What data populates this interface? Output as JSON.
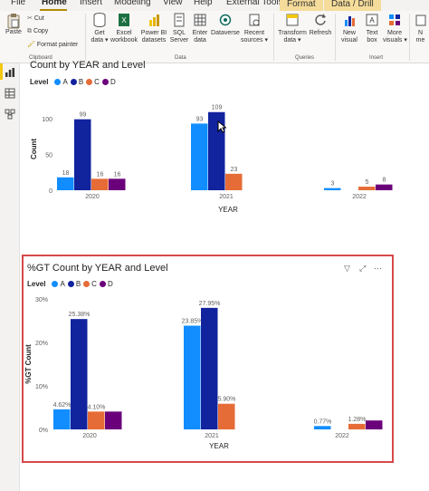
{
  "ribbon": {
    "tabs": [
      "File",
      "Home",
      "Insert",
      "Modeling",
      "View",
      "Help",
      "External Tools",
      "Format",
      "Data / Drill"
    ],
    "clipboard": {
      "paste": "Paste",
      "cut": "Cut",
      "copy": "Copy",
      "format_painter": "Format painter",
      "group": "Clipboard"
    },
    "data": {
      "get_data": [
        "Get",
        "data ▾"
      ],
      "excel": [
        "Excel",
        "workbook"
      ],
      "powerbi": [
        "Power BI",
        "datasets"
      ],
      "sql": [
        "SQL",
        "Server"
      ],
      "enter": [
        "Enter",
        "data"
      ],
      "dataverse": "Dataverse",
      "recent": [
        "Recent",
        "sources ▾"
      ],
      "group": "Data"
    },
    "queries": {
      "transform": [
        "Transform",
        "data ▾"
      ],
      "refresh": "Refresh",
      "group": "Queries"
    },
    "insert": {
      "new_visual": [
        "New",
        "visual"
      ],
      "text_box": [
        "Text",
        "box"
      ],
      "more_visuals": [
        "More",
        "visuals ▾"
      ],
      "group": "Insert"
    },
    "partial_label": "N",
    "partial_label2": "me"
  },
  "colors": {
    "A": "#118dff",
    "B": "#12239e",
    "C": "#e66c37",
    "D": "#6b007b",
    "selection": "#d6494a"
  },
  "charts": [
    {
      "title": "Count by YEAR and Level",
      "legend_title": "Level",
      "legend": [
        "A",
        "B",
        "C",
        "D"
      ],
      "chart_data": {
        "type": "bar",
        "categories": [
          "2020",
          "2021",
          "2022"
        ],
        "series": [
          {
            "name": "A",
            "values": [
              18,
              93,
              3
            ]
          },
          {
            "name": "B",
            "values": [
              99,
              109,
              null
            ]
          },
          {
            "name": "C",
            "values": [
              16,
              23,
              5
            ]
          },
          {
            "name": "D",
            "values": [
              16,
              null,
              8
            ]
          }
        ],
        "labels": [
          [
            "18",
            "93",
            "3"
          ],
          [
            "99",
            "109",
            ""
          ],
          [
            "16",
            "23",
            "5"
          ],
          [
            "16",
            "",
            "8"
          ]
        ],
        "xlabel": "YEAR",
        "ylabel": "Count",
        "yticks": [
          "0",
          "50",
          "100"
        ],
        "ylim": [
          0,
          115
        ]
      }
    },
    {
      "title": "%GT Count by YEAR and Level",
      "legend_title": "Level",
      "legend": [
        "A",
        "B",
        "C",
        "D"
      ],
      "chart_data": {
        "type": "bar",
        "categories": [
          "2020",
          "2021",
          "2022"
        ],
        "series": [
          {
            "name": "A",
            "values": [
              4.62,
              23.85,
              0.77
            ]
          },
          {
            "name": "B",
            "values": [
              25.38,
              27.95,
              null
            ]
          },
          {
            "name": "C",
            "values": [
              4.1,
              5.9,
              1.28
            ]
          },
          {
            "name": "D",
            "values": [
              4.1,
              null,
              2.05
            ]
          }
        ],
        "labels": [
          [
            "4.62%",
            "23.85%",
            "0.77%"
          ],
          [
            "25.38%",
            "27.95%",
            ""
          ],
          [
            "4.10%",
            "5.90%",
            "1.28%"
          ],
          [
            "",
            "",
            ""
          ]
        ],
        "xlabel": "YEAR",
        "ylabel": "%GT Count",
        "yticks": [
          "0%",
          "10%",
          "20%",
          "30%"
        ],
        "ylim": [
          0,
          30
        ]
      }
    }
  ]
}
